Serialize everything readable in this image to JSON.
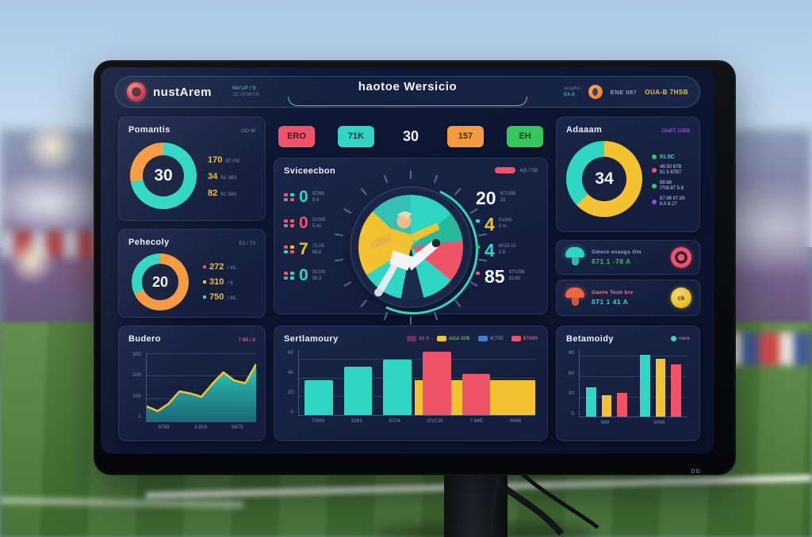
{
  "monitor": {
    "bezel_label": "DG"
  },
  "header": {
    "brand": "nustArem",
    "brand_sub1": "MA'UP / 9",
    "brand_sub2": "1B ARMA'B",
    "title": "haotoe Wersicio",
    "mini_stat_label": "scuphs",
    "mini_stat_value": "E4.9",
    "right_text": "ENE 087",
    "right_text_alt": "OUA-B 7HSB"
  },
  "chips": {
    "items": [
      {
        "label": "ERO",
        "bg": "#ef5368",
        "fg": "#48101f"
      },
      {
        "label": "71K",
        "bg": "#2fd6c3",
        "fg": "#0c3534"
      },
      {
        "label": "30",
        "bg": "",
        "fg": "#f5f7fa"
      },
      {
        "label": "157",
        "bg": "#f59a3e",
        "fg": "#4a2605"
      },
      {
        "label": "EH",
        "bg": "#35c75a",
        "fg": "#0b3a1a"
      }
    ]
  },
  "pomantis": {
    "title": "Pomantis",
    "corner": "OO W",
    "value": "30",
    "segments": [
      {
        "c": "#2fd6c3",
        "p": 72
      },
      {
        "c": "#f59a3e",
        "p": 28
      }
    ],
    "stats": [
      {
        "n": "170",
        "t": "87 /00"
      },
      {
        "n": "34",
        "t": "51 383"
      },
      {
        "n": "82",
        "t": "91 585"
      }
    ]
  },
  "pehecoly": {
    "title": "Pehecoly",
    "corner": "E2 / 73",
    "value": "20",
    "segments": [
      {
        "c": "#f59a3e",
        "p": 68
      },
      {
        "c": "#2fd6c3",
        "p": 32
      }
    ],
    "stats": [
      {
        "n": "272",
        "t": "/ 45"
      },
      {
        "n": "310",
        "t": "/ 8"
      },
      {
        "n": "750",
        "t": "/ 85"
      }
    ]
  },
  "budero": {
    "title": "Budero",
    "corner": "7 88 / 8",
    "chart_data": {
      "type": "area",
      "y_labels": [
        "300",
        "200",
        "100",
        "0"
      ],
      "x_labels": [
        "9789",
        "3.819",
        "9879"
      ],
      "points": [
        22,
        15,
        26,
        44,
        41,
        36,
        55,
        72,
        60,
        56,
        84
      ],
      "line_color": "#f2c230",
      "fill_color": "#2bb8b0"
    }
  },
  "selection": {
    "title": "Sviceecbon",
    "legend_label": "4(8.73B",
    "legend_color": "#ef5368",
    "left_stats": [
      {
        "v": "0",
        "c": "#2fd6c3",
        "l1": "87/98",
        "l2": "8.9"
      },
      {
        "v": "0",
        "c": "#ef5368",
        "l1": "81000",
        "l2": "5.41"
      },
      {
        "v": "7",
        "c": "#f2c230",
        "l1": "72.08",
        "l2": "69.8"
      },
      {
        "v": "0",
        "c": "#2fd6c3",
        "l1": "91000",
        "l2": "98.9"
      }
    ],
    "right_stats": [
      {
        "v": "20",
        "c": "#f5f7fa",
        "l1": "872088",
        "l2": "19"
      },
      {
        "v": "4",
        "c": "#f2c230",
        "l1": "Dunds",
        "l2": "2 m"
      },
      {
        "v": "4",
        "c": "#2fd6c3",
        "l1": "6013-15",
        "l2": "2:8"
      },
      {
        "v": "85",
        "c": "#f5f7fa",
        "l1": "870298",
        "l2": "81/85"
      }
    ],
    "wheel_segments": [
      {
        "c": "#2fd6c3",
        "p": 14
      },
      {
        "c": "#27b89a",
        "p": 9
      },
      {
        "c": "#ef5368",
        "p": 13
      },
      {
        "c": "#2fd6c3",
        "p": 10
      },
      {
        "c": "#1d2a4d",
        "p": 7
      },
      {
        "c": "#2fd6c3",
        "p": 13
      },
      {
        "c": "#f2c230",
        "p": 21
      },
      {
        "c": "#35c0b4",
        "p": 13
      }
    ]
  },
  "sertlamoury": {
    "title": "Sertlamoury",
    "legend": [
      {
        "s": "#b34668",
        "t": "88 8",
        "f": "#c06684"
      },
      {
        "s": "#f2c230",
        "t": "AGA 30B",
        "f": "#8fd96a"
      },
      {
        "s": "#3b82d6",
        "t": "4(70E",
        "f": "#7f8fd0"
      },
      {
        "s": "#ef5368",
        "t": "87899",
        "f": "#ef7a95"
      }
    ],
    "chart_data": {
      "type": "bar",
      "max": 70,
      "y_labels": [
        "60",
        "40",
        "20",
        "0"
      ],
      "x_labels": [
        "7/906",
        "3391",
        "9704",
        "GVCW",
        "7.84E",
        "0698"
      ],
      "bars": [
        {
          "v": 38,
          "c": "#2fd6c3"
        },
        {
          "v": 52,
          "c": "#2fd6c3"
        },
        {
          "v": 60,
          "c": "#2fd6c3"
        },
        {
          "v": 68,
          "c": "#ef5368"
        },
        {
          "v": 44,
          "c": "#ef5368"
        },
        {
          "v": 30,
          "c": "#f2c230"
        }
      ],
      "backdrop": {
        "v": 38,
        "c": "#f2c230"
      }
    }
  },
  "adaaam": {
    "title": "Adaaam",
    "corner": "ONET 10EB",
    "corner_color": "#b06af5",
    "value": "34",
    "segments": [
      {
        "c": "#f2c230",
        "p": 63
      },
      {
        "c": "#2fd6c3",
        "p": 37
      }
    ],
    "legend": [
      {
        "d": "#35c75a",
        "t": "91.5C",
        "s": "",
        "f": "#2fd6c3"
      },
      {
        "d": "#ef5368",
        "t": "48.50 87B",
        "s": "91 5 87BT",
        "f": "#c7d0e6"
      },
      {
        "d": "#35c75a",
        "t": "88.88",
        "s": "/708.87 5.8",
        "f": "#c7d0e6"
      },
      {
        "d": "#8a4df0",
        "t": "87.98 87.88",
        "s": "8.0 8.27",
        "f": "#c7d0e6"
      }
    ]
  },
  "cards": [
    {
      "title": "Gmero ovaugs Om",
      "title_color": "#9aa8cc",
      "value": "871 1 -78 A",
      "value_color": "#35c75a",
      "icon_color": "#2fd6c3",
      "right_icon": "target"
    },
    {
      "title": "Oavve Teub bre",
      "title_color": "#ef7a95",
      "value": "871 1 41 A",
      "value_color": "#2fd6c3",
      "icon_color": "#f0653e",
      "right_icon": "coin",
      "coin_text": "ck"
    }
  ],
  "betamoidy": {
    "title": "Betamoidy",
    "legend_dot": "#2fd6c3",
    "legend_text": "rrere",
    "legend_text_color": "#ef7a95",
    "chart_data": {
      "type": "grouped-bar",
      "max": 95,
      "y_labels": [
        "90",
        "60",
        "30",
        "0"
      ],
      "x_labels": [
        "898",
        "3098"
      ],
      "groups": [
        [
          {
            "v": 42,
            "c": "#2fd6c3"
          },
          {
            "v": 31,
            "c": "#f2c230"
          },
          {
            "v": 34,
            "c": "#ef5368"
          }
        ],
        [
          {
            "v": 88,
            "c": "#2fd6c3"
          },
          {
            "v": 83,
            "c": "#f2c230"
          },
          {
            "v": 75,
            "c": "#ef5368"
          }
        ]
      ]
    }
  }
}
